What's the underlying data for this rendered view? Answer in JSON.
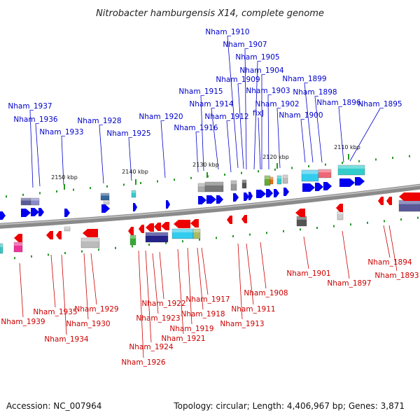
{
  "title": "Nitrobacter hamburgensis X14, complete genome",
  "footer": {
    "accession": "Accession: NC_007964",
    "summary": "Topology: circular; Length: 4,406,967 bp; Genes: 3,871"
  },
  "colors": {
    "plus_label": "#0000cc",
    "minus_label": "#cc0000",
    "plus_arrow": "#0000ee",
    "minus_arrow": "#ee0000",
    "backbone": "#808080",
    "tick": "#229922"
  },
  "scale_marks": [
    "2110 kbp",
    "2120 kbp",
    "2130 kbp",
    "2140 kbp",
    "2150 kbp"
  ],
  "plus_genes": [
    "Nham_1910",
    "Nham_1907",
    "Nham_1905",
    "Nham_1904",
    "Nham_1909",
    "Nham_1915",
    "Nham_1903",
    "Nham_1899",
    "Nham_1898",
    "Nham_1914",
    "Nham_1902",
    "Nham_1896",
    "Nham_1895",
    "Nham_1937",
    "Nham_1912",
    "fixJ",
    "Nham_1900",
    "Nham_1936",
    "Nham_1928",
    "Nham_1920",
    "Nham_1916",
    "Nham_1933",
    "Nham_1925"
  ],
  "minus_genes": [
    "Nham_1901",
    "Nham_1897",
    "Nham_1894",
    "Nham_1893",
    "Nham_1908",
    "Nham_1917",
    "Nham_1922",
    "Nham_1929",
    "Nham_1911",
    "Nham_1935",
    "Nham_1918",
    "Nham_1923",
    "Nham_1939",
    "Nham_1930",
    "Nham_1913",
    "Nham_1919",
    "Nham_1921",
    "Nham_1934",
    "Nham_1924",
    "Nham_1926"
  ]
}
